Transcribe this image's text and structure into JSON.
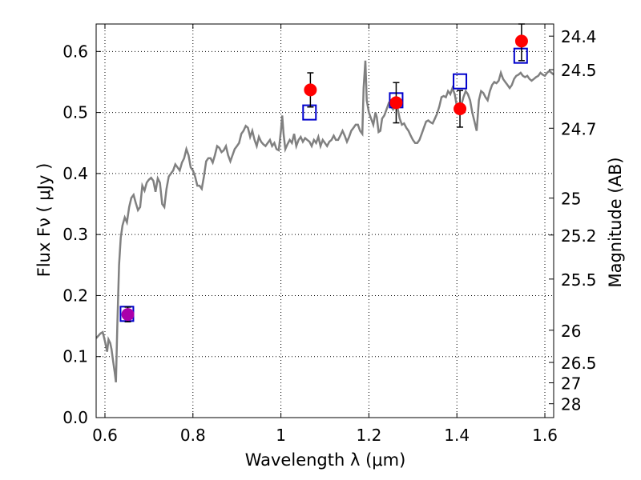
{
  "chart_data": {
    "type": "scatter",
    "title": "",
    "xlabel": "Wavelength  λ (μm)",
    "ylabel": "Flux  Fν  ( μJy )",
    "ylabel_right": "Magnitude (AB)",
    "xlim": [
      0.58,
      1.62
    ],
    "ylim": [
      0.0,
      0.645
    ],
    "grid": true,
    "x_ticks": [
      0.6,
      0.8,
      1.0,
      1.2,
      1.4,
      1.6
    ],
    "x_tick_labels": [
      "0.6",
      "0.8",
      "1",
      "1.2",
      "1.4",
      "1.6"
    ],
    "y_ticks": [
      0.0,
      0.1,
      0.2,
      0.3,
      0.4,
      0.5,
      0.6
    ],
    "y_tick_labels": [
      "0.0",
      "0.1",
      "0.2",
      "0.3",
      "0.4",
      "0.5",
      "0.6"
    ],
    "right_ticks": [
      {
        "label": "24.4",
        "flux": 0.6251
      },
      {
        "label": "24.5",
        "flux": 0.5701
      },
      {
        "label": "24.7",
        "flux": 0.4742
      },
      {
        "label": "25",
        "flux": 0.3597
      },
      {
        "label": "25.2",
        "flux": 0.2992
      },
      {
        "label": "25.5",
        "flux": 0.227
      },
      {
        "label": "26",
        "flux": 0.1432
      },
      {
        "label": "26.5",
        "flux": 0.0904
      },
      {
        "label": "27",
        "flux": 0.057
      },
      {
        "label": "28",
        "flux": 0.0227
      }
    ],
    "series": [
      {
        "kind": "line",
        "color": "#808080",
        "points": [
          [
            0.58,
            0.13
          ],
          [
            0.59,
            0.138
          ],
          [
            0.595,
            0.14
          ],
          [
            0.6,
            0.125
          ],
          [
            0.605,
            0.108
          ],
          [
            0.608,
            0.128
          ],
          [
            0.612,
            0.122
          ],
          [
            0.615,
            0.112
          ],
          [
            0.618,
            0.095
          ],
          [
            0.622,
            0.075
          ],
          [
            0.625,
            0.058
          ],
          [
            0.628,
            0.15
          ],
          [
            0.632,
            0.25
          ],
          [
            0.636,
            0.295
          ],
          [
            0.64,
            0.315
          ],
          [
            0.645,
            0.328
          ],
          [
            0.65,
            0.32
          ],
          [
            0.655,
            0.345
          ],
          [
            0.66,
            0.36
          ],
          [
            0.665,
            0.365
          ],
          [
            0.67,
            0.352
          ],
          [
            0.675,
            0.34
          ],
          [
            0.68,
            0.345
          ],
          [
            0.685,
            0.38
          ],
          [
            0.69,
            0.372
          ],
          [
            0.695,
            0.385
          ],
          [
            0.7,
            0.39
          ],
          [
            0.705,
            0.393
          ],
          [
            0.71,
            0.388
          ],
          [
            0.715,
            0.37
          ],
          [
            0.72,
            0.392
          ],
          [
            0.725,
            0.385
          ],
          [
            0.73,
            0.35
          ],
          [
            0.735,
            0.345
          ],
          [
            0.74,
            0.375
          ],
          [
            0.745,
            0.395
          ],
          [
            0.75,
            0.4
          ],
          [
            0.755,
            0.405
          ],
          [
            0.76,
            0.415
          ],
          [
            0.765,
            0.41
          ],
          [
            0.77,
            0.405
          ],
          [
            0.775,
            0.418
          ],
          [
            0.78,
            0.425
          ],
          [
            0.785,
            0.44
          ],
          [
            0.79,
            0.43
          ],
          [
            0.795,
            0.41
          ],
          [
            0.8,
            0.405
          ],
          [
            0.805,
            0.395
          ],
          [
            0.81,
            0.38
          ],
          [
            0.815,
            0.38
          ],
          [
            0.82,
            0.375
          ],
          [
            0.825,
            0.395
          ],
          [
            0.83,
            0.42
          ],
          [
            0.835,
            0.425
          ],
          [
            0.84,
            0.425
          ],
          [
            0.845,
            0.418
          ],
          [
            0.85,
            0.43
          ],
          [
            0.855,
            0.445
          ],
          [
            0.86,
            0.442
          ],
          [
            0.865,
            0.435
          ],
          [
            0.87,
            0.438
          ],
          [
            0.875,
            0.445
          ],
          [
            0.88,
            0.43
          ],
          [
            0.885,
            0.42
          ],
          [
            0.89,
            0.43
          ],
          [
            0.895,
            0.44
          ],
          [
            0.9,
            0.445
          ],
          [
            0.905,
            0.45
          ],
          [
            0.91,
            0.465
          ],
          [
            0.915,
            0.47
          ],
          [
            0.92,
            0.478
          ],
          [
            0.925,
            0.475
          ],
          [
            0.93,
            0.46
          ],
          [
            0.935,
            0.47
          ],
          [
            0.94,
            0.455
          ],
          [
            0.945,
            0.445
          ],
          [
            0.95,
            0.46
          ],
          [
            0.955,
            0.452
          ],
          [
            0.96,
            0.448
          ],
          [
            0.965,
            0.445
          ],
          [
            0.97,
            0.45
          ],
          [
            0.975,
            0.455
          ],
          [
            0.98,
            0.445
          ],
          [
            0.985,
            0.45
          ],
          [
            0.99,
            0.44
          ],
          [
            0.995,
            0.438
          ],
          [
            1.0,
            0.47
          ],
          [
            1.003,
            0.495
          ],
          [
            1.006,
            0.465
          ],
          [
            1.01,
            0.44
          ],
          [
            1.015,
            0.448
          ],
          [
            1.02,
            0.455
          ],
          [
            1.025,
            0.45
          ],
          [
            1.03,
            0.465
          ],
          [
            1.035,
            0.445
          ],
          [
            1.04,
            0.455
          ],
          [
            1.045,
            0.46
          ],
          [
            1.05,
            0.452
          ],
          [
            1.055,
            0.458
          ],
          [
            1.06,
            0.455
          ],
          [
            1.065,
            0.452
          ],
          [
            1.07,
            0.445
          ],
          [
            1.075,
            0.455
          ],
          [
            1.08,
            0.45
          ],
          [
            1.085,
            0.46
          ],
          [
            1.09,
            0.445
          ],
          [
            1.095,
            0.455
          ],
          [
            1.1,
            0.45
          ],
          [
            1.105,
            0.445
          ],
          [
            1.11,
            0.452
          ],
          [
            1.115,
            0.455
          ],
          [
            1.12,
            0.462
          ],
          [
            1.125,
            0.455
          ],
          [
            1.13,
            0.455
          ],
          [
            1.135,
            0.462
          ],
          [
            1.14,
            0.47
          ],
          [
            1.145,
            0.462
          ],
          [
            1.15,
            0.452
          ],
          [
            1.155,
            0.46
          ],
          [
            1.16,
            0.47
          ],
          [
            1.165,
            0.475
          ],
          [
            1.17,
            0.48
          ],
          [
            1.175,
            0.48
          ],
          [
            1.18,
            0.47
          ],
          [
            1.185,
            0.465
          ],
          [
            1.188,
            0.54
          ],
          [
            1.192,
            0.585
          ],
          [
            1.195,
            0.52
          ],
          [
            1.2,
            0.5
          ],
          [
            1.205,
            0.49
          ],
          [
            1.21,
            0.48
          ],
          [
            1.215,
            0.5
          ],
          [
            1.218,
            0.492
          ],
          [
            1.222,
            0.468
          ],
          [
            1.226,
            0.47
          ],
          [
            1.23,
            0.49
          ],
          [
            1.235,
            0.495
          ],
          [
            1.24,
            0.505
          ],
          [
            1.245,
            0.515
          ],
          [
            1.25,
            0.51
          ],
          [
            1.255,
            0.505
          ],
          [
            1.26,
            0.51
          ],
          [
            1.265,
            0.508
          ],
          [
            1.27,
            0.49
          ],
          [
            1.275,
            0.48
          ],
          [
            1.28,
            0.482
          ],
          [
            1.285,
            0.475
          ],
          [
            1.29,
            0.47
          ],
          [
            1.295,
            0.462
          ],
          [
            1.3,
            0.455
          ],
          [
            1.305,
            0.45
          ],
          [
            1.31,
            0.45
          ],
          [
            1.315,
            0.455
          ],
          [
            1.32,
            0.465
          ],
          [
            1.325,
            0.475
          ],
          [
            1.33,
            0.485
          ],
          [
            1.335,
            0.487
          ],
          [
            1.34,
            0.484
          ],
          [
            1.345,
            0.482
          ],
          [
            1.35,
            0.49
          ],
          [
            1.355,
            0.498
          ],
          [
            1.36,
            0.51
          ],
          [
            1.365,
            0.525
          ],
          [
            1.37,
            0.527
          ],
          [
            1.375,
            0.525
          ],
          [
            1.38,
            0.535
          ],
          [
            1.385,
            0.53
          ],
          [
            1.39,
            0.54
          ],
          [
            1.395,
            0.53
          ],
          [
            1.4,
            0.51
          ],
          [
            1.405,
            0.5
          ],
          [
            1.41,
            0.512
          ],
          [
            1.415,
            0.525
          ],
          [
            1.42,
            0.535
          ],
          [
            1.425,
            0.53
          ],
          [
            1.43,
            0.52
          ],
          [
            1.435,
            0.5
          ],
          [
            1.44,
            0.485
          ],
          [
            1.445,
            0.47
          ],
          [
            1.45,
            0.52
          ],
          [
            1.455,
            0.535
          ],
          [
            1.46,
            0.532
          ],
          [
            1.465,
            0.525
          ],
          [
            1.47,
            0.52
          ],
          [
            1.475,
            0.535
          ],
          [
            1.48,
            0.545
          ],
          [
            1.485,
            0.55
          ],
          [
            1.49,
            0.548
          ],
          [
            1.495,
            0.552
          ],
          [
            1.5,
            0.565
          ],
          [
            1.505,
            0.555
          ],
          [
            1.51,
            0.55
          ],
          [
            1.515,
            0.545
          ],
          [
            1.52,
            0.54
          ],
          [
            1.525,
            0.545
          ],
          [
            1.53,
            0.555
          ],
          [
            1.535,
            0.56
          ],
          [
            1.54,
            0.562
          ],
          [
            1.545,
            0.565
          ],
          [
            1.55,
            0.56
          ],
          [
            1.555,
            0.558
          ],
          [
            1.56,
            0.56
          ],
          [
            1.565,
            0.555
          ],
          [
            1.57,
            0.552
          ],
          [
            1.575,
            0.555
          ],
          [
            1.58,
            0.558
          ],
          [
            1.585,
            0.56
          ],
          [
            1.59,
            0.565
          ],
          [
            1.595,
            0.562
          ],
          [
            1.6,
            0.56
          ],
          [
            1.605,
            0.565
          ],
          [
            1.61,
            0.568
          ],
          [
            1.615,
            0.565
          ],
          [
            1.62,
            0.562
          ]
        ]
      },
      {
        "kind": "open-square",
        "color": "#0000cc",
        "points": [
          [
            0.65,
            0.17
          ],
          [
            1.065,
            0.5
          ],
          [
            1.262,
            0.52
          ],
          [
            1.407,
            0.551
          ],
          [
            1.545,
            0.593
          ]
        ]
      },
      {
        "kind": "filled-circle",
        "color": "#ff0000",
        "points": [
          [
            1.067,
            0.537
          ],
          [
            1.262,
            0.516
          ],
          [
            1.407,
            0.506
          ],
          [
            1.547,
            0.617
          ]
        ],
        "errors": [
          0.028,
          0.033,
          0.03,
          0.032
        ]
      },
      {
        "kind": "filled-circle",
        "color": "#aa00aa",
        "points": [
          [
            0.652,
            0.169
          ]
        ],
        "errors": [
          0.012
        ]
      }
    ]
  }
}
